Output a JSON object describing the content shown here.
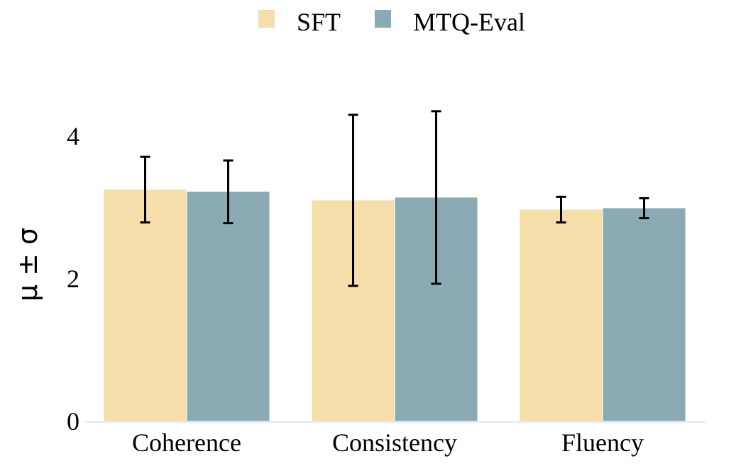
{
  "chart_data": {
    "type": "bar",
    "title": "",
    "xlabel": "",
    "ylabel": "μ ± σ",
    "ylim": [
      0,
      5
    ],
    "yticks": [
      0,
      2,
      4
    ],
    "grid": false,
    "legend_position": "top-center",
    "categories": [
      "Coherence",
      "Consistency",
      "Fluency"
    ],
    "series": [
      {
        "name": "SFT",
        "color": "#f5deaa",
        "values": [
          3.25,
          3.1,
          2.97
        ],
        "error": [
          0.46,
          1.2,
          0.18
        ]
      },
      {
        "name": "MTQ-Eval",
        "color": "#8aabb3",
        "values": [
          3.22,
          3.14,
          2.99
        ],
        "error": [
          0.44,
          1.21,
          0.14
        ]
      }
    ]
  }
}
